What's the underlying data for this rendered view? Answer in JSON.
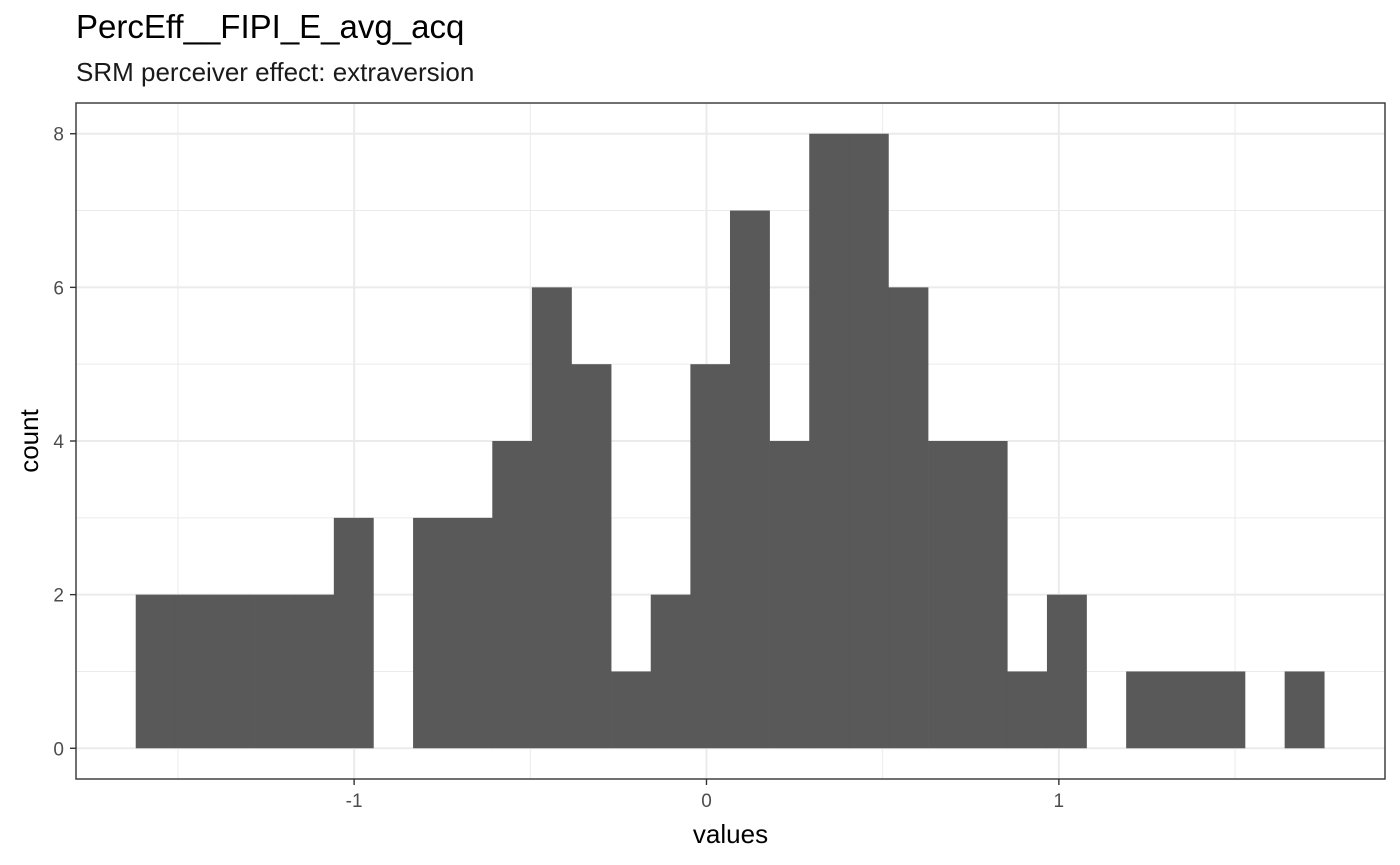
{
  "chart_data": {
    "type": "bar",
    "title": "PercEff__FIPI_E_avg_acq",
    "subtitle": "SRM perceiver effect: extraversion",
    "xlabel": "values",
    "ylabel": "count",
    "xlim": [
      -1.7893,
      1.9256
    ],
    "ylim": [
      -0.4,
      8.4
    ],
    "x_ticks": [
      -1,
      0,
      1
    ],
    "x_tick_labels": [
      "-1",
      "0",
      "1"
    ],
    "y_ticks": [
      0,
      2,
      4,
      6,
      8
    ],
    "y_tick_labels": [
      "0",
      "2",
      "4",
      "6",
      "8"
    ],
    "grid": true,
    "legend": "none",
    "bar_color": "#595959",
    "bins": [
      {
        "x0": -1.6198,
        "x1": -1.5073,
        "count": 2
      },
      {
        "x0": -1.5073,
        "x1": -1.3949,
        "count": 2
      },
      {
        "x0": -1.3949,
        "x1": -1.2825,
        "count": 2
      },
      {
        "x0": -1.2825,
        "x1": -1.17,
        "count": 2
      },
      {
        "x0": -1.17,
        "x1": -1.0576,
        "count": 2
      },
      {
        "x0": -1.0576,
        "x1": -0.9452,
        "count": 3
      },
      {
        "x0": -0.9452,
        "x1": -0.8327,
        "count": 0
      },
      {
        "x0": -0.8327,
        "x1": -0.7203,
        "count": 3
      },
      {
        "x0": -0.7203,
        "x1": -0.6079,
        "count": 3
      },
      {
        "x0": -0.6079,
        "x1": -0.4955,
        "count": 4
      },
      {
        "x0": -0.4955,
        "x1": -0.383,
        "count": 6
      },
      {
        "x0": -0.383,
        "x1": -0.2706,
        "count": 5
      },
      {
        "x0": -0.2706,
        "x1": -0.1582,
        "count": 1
      },
      {
        "x0": -0.1582,
        "x1": -0.0457,
        "count": 2
      },
      {
        "x0": -0.0457,
        "x1": 0.0667,
        "count": 5
      },
      {
        "x0": 0.0667,
        "x1": 0.1791,
        "count": 7
      },
      {
        "x0": 0.1791,
        "x1": 0.2916,
        "count": 4
      },
      {
        "x0": 0.2916,
        "x1": 0.404,
        "count": 8
      },
      {
        "x0": 0.404,
        "x1": 0.5164,
        "count": 8
      },
      {
        "x0": 0.5164,
        "x1": 0.6289,
        "count": 6
      },
      {
        "x0": 0.6289,
        "x1": 0.7413,
        "count": 4
      },
      {
        "x0": 0.7413,
        "x1": 0.8537,
        "count": 4
      },
      {
        "x0": 0.8537,
        "x1": 0.9662,
        "count": 1
      },
      {
        "x0": 0.9662,
        "x1": 1.0786,
        "count": 2
      },
      {
        "x0": 1.0786,
        "x1": 1.191,
        "count": 0
      },
      {
        "x0": 1.191,
        "x1": 1.3035,
        "count": 1
      },
      {
        "x0": 1.3035,
        "x1": 1.4159,
        "count": 1
      },
      {
        "x0": 1.4159,
        "x1": 1.5283,
        "count": 1
      },
      {
        "x0": 1.5283,
        "x1": 1.6408,
        "count": 0
      },
      {
        "x0": 1.6408,
        "x1": 1.7532,
        "count": 1
      }
    ]
  }
}
